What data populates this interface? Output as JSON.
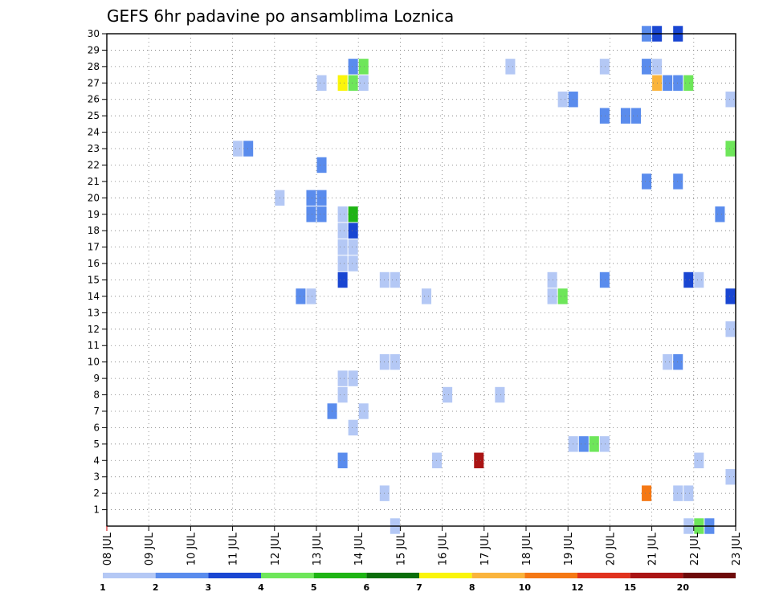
{
  "chart_data": {
    "type": "heatmap",
    "title": "GEFS 6hr padavine po ansamblima Loznica",
    "x_tick_labels": [
      "08 JUL",
      "09 JUL",
      "10 JUL",
      "11 JUL",
      "12 JUL",
      "13 JUL",
      "14 JUL",
      "15 JUL",
      "16 JUL",
      "17 JUL",
      "18 JUL",
      "19 JUL",
      "20 JUL",
      "21 JUL",
      "22 JUL",
      "23 JUL"
    ],
    "y_tick_labels": [
      "1",
      "2",
      "3",
      "4",
      "5",
      "6",
      "7",
      "8",
      "9",
      "10",
      "11",
      "12",
      "13",
      "14",
      "15",
      "16",
      "17",
      "18",
      "19",
      "20",
      "21",
      "22",
      "23",
      "24",
      "25",
      "26",
      "27",
      "28",
      "29",
      "30"
    ],
    "y_range": [
      0,
      30
    ],
    "x_range": [
      0,
      60
    ],
    "grid": true,
    "legend": {
      "placement": "bottom",
      "labels": [
        "1",
        "2",
        "3",
        "4",
        "5",
        "6",
        "7",
        "8",
        "10",
        "12",
        "15",
        "20"
      ],
      "colors": [
        "#b4c8f5",
        "#5a8ced",
        "#1946d2",
        "#6ee65a",
        "#1eb414",
        "#0a6e0a",
        "#faf50a",
        "#fab43c",
        "#f57814",
        "#e1321e",
        "#aa1414",
        "#6e0a0a"
      ]
    },
    "color_levels": [
      1,
      2,
      3,
      4,
      5,
      6,
      7,
      8,
      10,
      12,
      15,
      20
    ],
    "cells": [
      {
        "x": 51,
        "y": 30,
        "v": 2
      },
      {
        "x": 52,
        "y": 30,
        "v": 3
      },
      {
        "x": 54,
        "y": 30,
        "v": 3
      },
      {
        "x": 23,
        "y": 28,
        "v": 2
      },
      {
        "x": 24,
        "y": 28,
        "v": 4
      },
      {
        "x": 38,
        "y": 28,
        "v": 1
      },
      {
        "x": 47,
        "y": 28,
        "v": 1
      },
      {
        "x": 51,
        "y": 28,
        "v": 2
      },
      {
        "x": 52,
        "y": 28,
        "v": 1
      },
      {
        "x": 20,
        "y": 27,
        "v": 1
      },
      {
        "x": 22,
        "y": 27,
        "v": 7
      },
      {
        "x": 23,
        "y": 27,
        "v": 4
      },
      {
        "x": 24,
        "y": 27,
        "v": 1
      },
      {
        "x": 52,
        "y": 27,
        "v": 8
      },
      {
        "x": 53,
        "y": 27,
        "v": 2
      },
      {
        "x": 54,
        "y": 27,
        "v": 2
      },
      {
        "x": 55,
        "y": 27,
        "v": 4
      },
      {
        "x": 43,
        "y": 26,
        "v": 1
      },
      {
        "x": 44,
        "y": 26,
        "v": 2
      },
      {
        "x": 59,
        "y": 26,
        "v": 1
      },
      {
        "x": 47,
        "y": 25,
        "v": 2
      },
      {
        "x": 49,
        "y": 25,
        "v": 2
      },
      {
        "x": 50,
        "y": 25,
        "v": 2
      },
      {
        "x": 12,
        "y": 23,
        "v": 1
      },
      {
        "x": 13,
        "y": 23,
        "v": 2
      },
      {
        "x": 59,
        "y": 23,
        "v": 4
      },
      {
        "x": 20,
        "y": 22,
        "v": 2
      },
      {
        "x": 51,
        "y": 21,
        "v": 2
      },
      {
        "x": 54,
        "y": 21,
        "v": 2
      },
      {
        "x": 16,
        "y": 20,
        "v": 1
      },
      {
        "x": 19,
        "y": 20,
        "v": 2
      },
      {
        "x": 20,
        "y": 20,
        "v": 2
      },
      {
        "x": 19,
        "y": 19,
        "v": 2
      },
      {
        "x": 20,
        "y": 19,
        "v": 2
      },
      {
        "x": 22,
        "y": 19,
        "v": 1
      },
      {
        "x": 23,
        "y": 19,
        "v": 5
      },
      {
        "x": 58,
        "y": 19,
        "v": 2
      },
      {
        "x": 22,
        "y": 18,
        "v": 1
      },
      {
        "x": 23,
        "y": 18,
        "v": 3
      },
      {
        "x": 22,
        "y": 17,
        "v": 1
      },
      {
        "x": 23,
        "y": 17,
        "v": 1
      },
      {
        "x": 22,
        "y": 16,
        "v": 1
      },
      {
        "x": 23,
        "y": 16,
        "v": 1
      },
      {
        "x": 22,
        "y": 15,
        "v": 3
      },
      {
        "x": 26,
        "y": 15,
        "v": 1
      },
      {
        "x": 27,
        "y": 15,
        "v": 1
      },
      {
        "x": 42,
        "y": 15,
        "v": 1
      },
      {
        "x": 47,
        "y": 15,
        "v": 2
      },
      {
        "x": 55,
        "y": 15,
        "v": 3
      },
      {
        "x": 56,
        "y": 15,
        "v": 1
      },
      {
        "x": 18,
        "y": 14,
        "v": 2
      },
      {
        "x": 19,
        "y": 14,
        "v": 1
      },
      {
        "x": 30,
        "y": 14,
        "v": 1
      },
      {
        "x": 42,
        "y": 14,
        "v": 1
      },
      {
        "x": 43,
        "y": 14,
        "v": 4
      },
      {
        "x": 59,
        "y": 14,
        "v": 3
      },
      {
        "x": 59,
        "y": 12,
        "v": 1
      },
      {
        "x": 26,
        "y": 10,
        "v": 1
      },
      {
        "x": 27,
        "y": 10,
        "v": 1
      },
      {
        "x": 53,
        "y": 10,
        "v": 1
      },
      {
        "x": 54,
        "y": 10,
        "v": 2
      },
      {
        "x": 22,
        "y": 9,
        "v": 1
      },
      {
        "x": 23,
        "y": 9,
        "v": 1
      },
      {
        "x": 22,
        "y": 8,
        "v": 1
      },
      {
        "x": 32,
        "y": 8,
        "v": 1
      },
      {
        "x": 37,
        "y": 8,
        "v": 1
      },
      {
        "x": 21,
        "y": 7,
        "v": 2
      },
      {
        "x": 24,
        "y": 7,
        "v": 1
      },
      {
        "x": 23,
        "y": 6,
        "v": 1
      },
      {
        "x": 44,
        "y": 5,
        "v": 1
      },
      {
        "x": 45,
        "y": 5,
        "v": 2
      },
      {
        "x": 46,
        "y": 5,
        "v": 4
      },
      {
        "x": 47,
        "y": 5,
        "v": 1
      },
      {
        "x": 22,
        "y": 4,
        "v": 2
      },
      {
        "x": 31,
        "y": 4,
        "v": 1
      },
      {
        "x": 35,
        "y": 4,
        "v": 15
      },
      {
        "x": 56,
        "y": 4,
        "v": 1
      },
      {
        "x": 59,
        "y": 3,
        "v": 1
      },
      {
        "x": 26,
        "y": 2,
        "v": 1
      },
      {
        "x": 51,
        "y": 2,
        "v": 10
      },
      {
        "x": 54,
        "y": 2,
        "v": 1
      },
      {
        "x": 55,
        "y": 2,
        "v": 1
      },
      {
        "x": 27,
        "y": 0,
        "v": 1
      },
      {
        "x": 55,
        "y": 0,
        "v": 1
      },
      {
        "x": 56,
        "y": 0,
        "v": 4
      },
      {
        "x": 57,
        "y": 0,
        "v": 2
      }
    ]
  }
}
